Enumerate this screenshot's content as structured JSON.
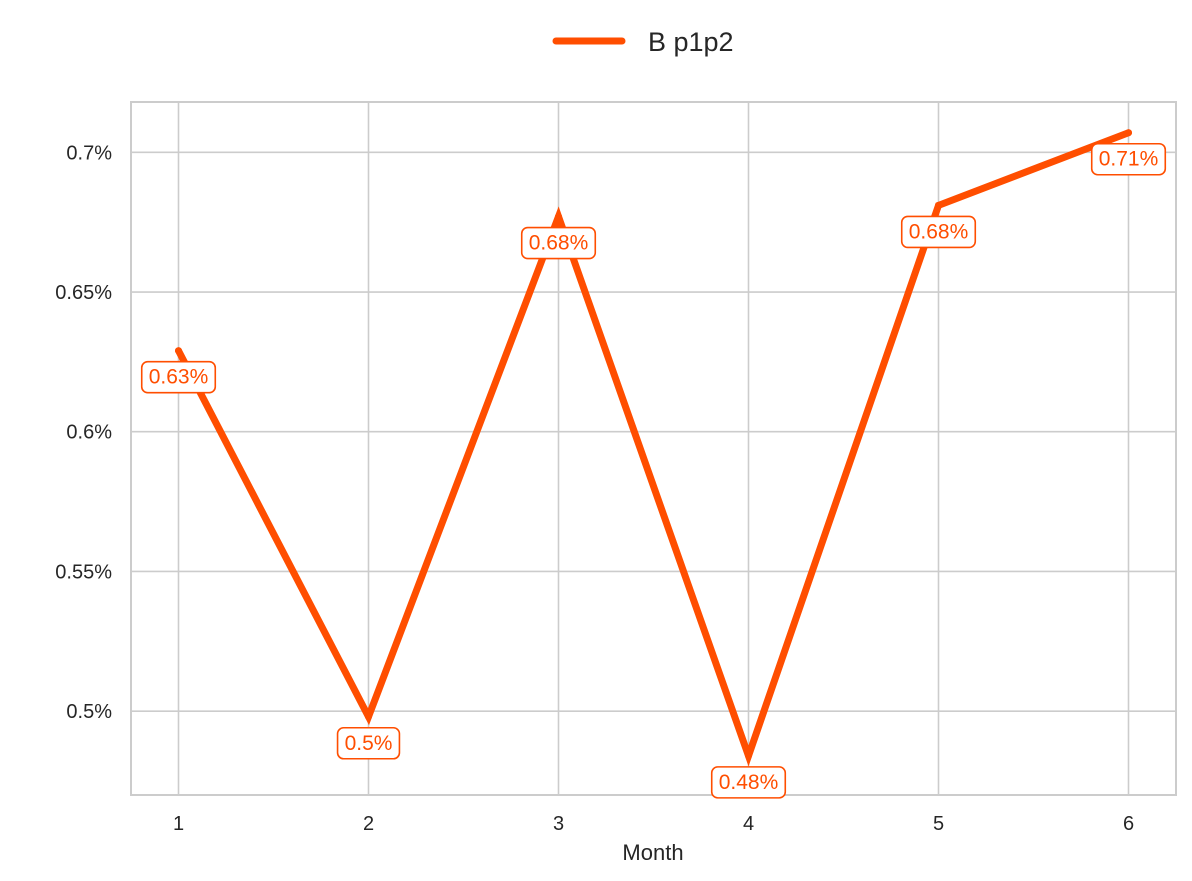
{
  "chart_data": {
    "type": "line",
    "xlabel": "Month",
    "ylabel": "",
    "x": [
      1,
      2,
      3,
      4,
      5,
      6
    ],
    "x_ticks": [
      "1",
      "2",
      "3",
      "4",
      "5",
      "6"
    ],
    "xlim": [
      0.75,
      6.25
    ],
    "ylim": [
      0.0047,
      0.00718
    ],
    "y_ticks": [
      0.005,
      0.0055,
      0.006,
      0.0065,
      0.007
    ],
    "y_tick_labels": [
      "0.5%",
      "0.55%",
      "0.6%",
      "0.65%",
      "0.7%"
    ],
    "grid": true,
    "legend_position": "top-center",
    "series": [
      {
        "name": "B p1p2",
        "color": "#FF4E00",
        "values": [
          0.00629,
          0.00498,
          0.00677,
          0.00484,
          0.00681,
          0.00707
        ],
        "data_labels": [
          "0.63%",
          "0.5%",
          "0.68%",
          "0.48%",
          "0.68%",
          "0.71%"
        ]
      }
    ]
  }
}
